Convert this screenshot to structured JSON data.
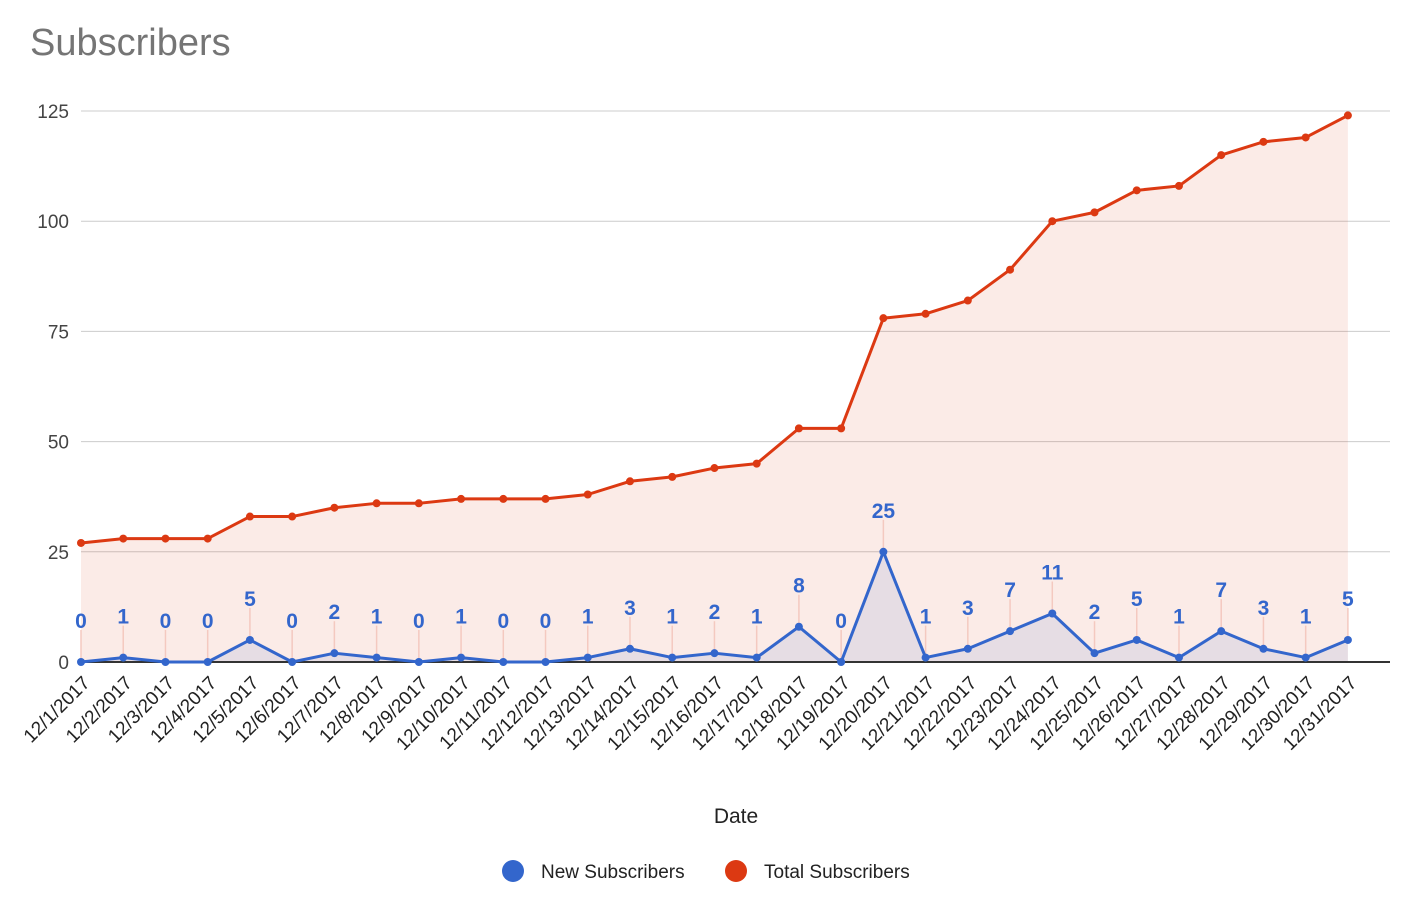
{
  "chart_data": {
    "type": "area",
    "title": "Subscribers",
    "xlabel": "Date",
    "ylabel": "",
    "ylim": [
      0,
      125
    ],
    "yticks": [
      "0",
      "25",
      "50",
      "75",
      "100",
      "125"
    ],
    "grid": true,
    "legend_position": "bottom",
    "categories": [
      "12/1/2017",
      "12/2/2017",
      "12/3/2017",
      "12/4/2017",
      "12/5/2017",
      "12/6/2017",
      "12/7/2017",
      "12/8/2017",
      "12/9/2017",
      "12/10/2017",
      "12/11/2017",
      "12/12/2017",
      "12/13/2017",
      "12/14/2017",
      "12/15/2017",
      "12/16/2017",
      "12/17/2017",
      "12/18/2017",
      "12/19/2017",
      "12/20/2017",
      "12/21/2017",
      "12/22/2017",
      "12/23/2017",
      "12/24/2017",
      "12/25/2017",
      "12/26/2017",
      "12/27/2017",
      "12/28/2017",
      "12/29/2017",
      "12/30/2017",
      "12/31/2017"
    ],
    "series": [
      {
        "name": "New Subscribers",
        "color": "#3366cc",
        "data_labels": true,
        "values": [
          0,
          1,
          0,
          0,
          5,
          0,
          2,
          1,
          0,
          1,
          0,
          0,
          1,
          3,
          1,
          2,
          1,
          8,
          0,
          25,
          1,
          3,
          7,
          11,
          2,
          5,
          1,
          7,
          3,
          1,
          5
        ]
      },
      {
        "name": "Total Subscribers",
        "color": "#dc3912",
        "data_labels": false,
        "values": [
          27,
          28,
          28,
          28,
          33,
          33,
          35,
          36,
          36,
          37,
          37,
          37,
          38,
          41,
          42,
          44,
          45,
          53,
          53,
          78,
          79,
          82,
          89,
          100,
          102,
          107,
          108,
          115,
          118,
          119,
          124
        ]
      }
    ]
  }
}
